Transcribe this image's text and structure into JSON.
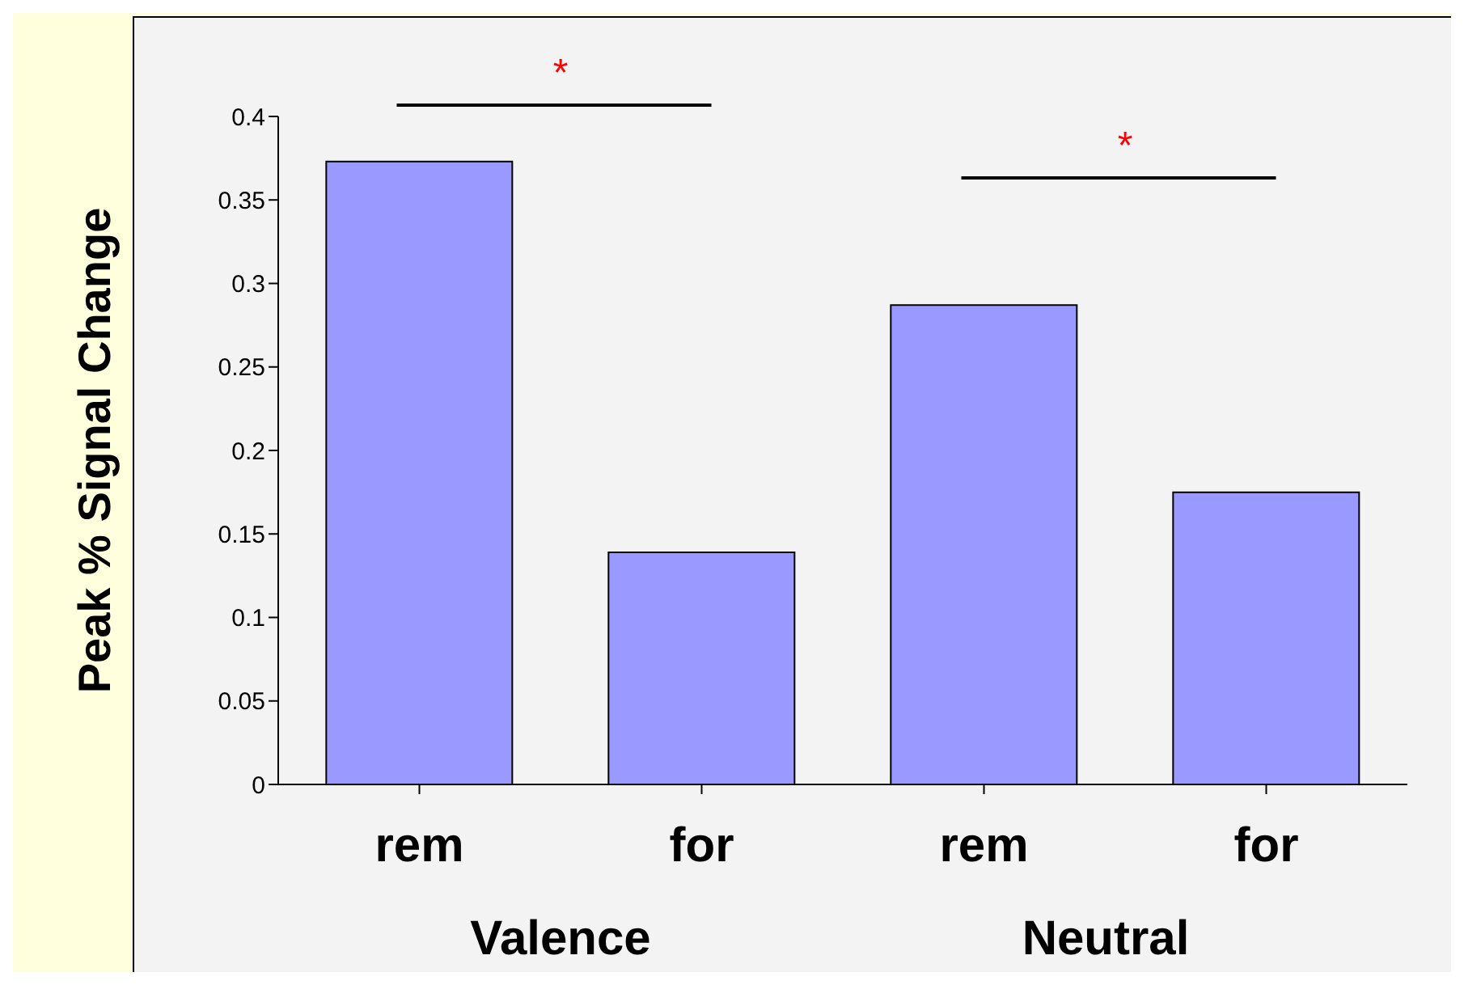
{
  "chart_data": {
    "type": "bar",
    "ylabel": "Peak % Signal Change",
    "categories": [
      "rem",
      "for",
      "rem",
      "for"
    ],
    "values": [
      0.373,
      0.139,
      0.287,
      0.175
    ],
    "color": "#9999ff",
    "ylim": [
      0,
      0.4
    ],
    "yticks": [
      0,
      0.05,
      0.1,
      0.15,
      0.2,
      0.25,
      0.3,
      0.35,
      0.4
    ],
    "annotations": [
      "*",
      "*",
      "Valence",
      "Neutral"
    ]
  }
}
